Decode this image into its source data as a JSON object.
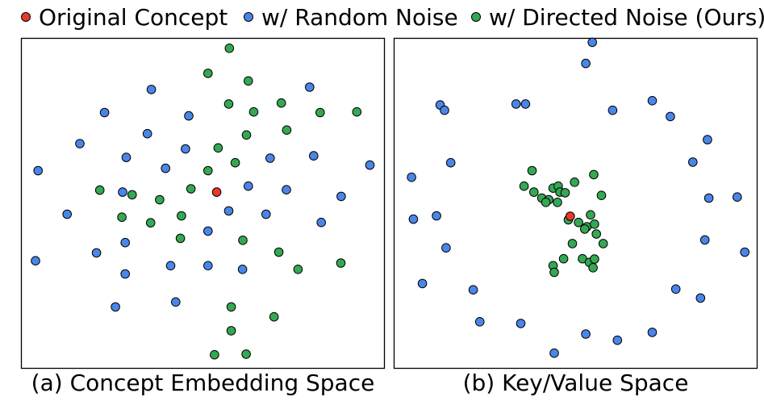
{
  "colors": {
    "original": "#e8392c",
    "random": "#4a86e8",
    "directed": "#34a853"
  },
  "legend": {
    "original": "Original Concept",
    "random": "w/ Random Noise",
    "directed": "w/ Directed Noise (Ours)"
  },
  "captions": {
    "a": "(a) Concept Embedding Space",
    "b": "(b) Key/Value Space"
  },
  "chart_data": [
    {
      "type": "scatter",
      "title": "(a) Concept Embedding Space",
      "xlim": [
        0,
        100
      ],
      "ylim": [
        0,
        100
      ],
      "grid": false,
      "series": [
        {
          "name": "Original Concept",
          "points": [
            [
              53.8,
              53.4
            ]
          ]
        },
        {
          "name": "w/ Random Noise",
          "points": [
            [
              4.6,
              59.9
            ],
            [
              22.9,
              77.5
            ],
            [
              16.1,
              68.1
            ],
            [
              35.8,
              84.5
            ],
            [
              46.1,
              76.5
            ],
            [
              34.7,
              71.1
            ],
            [
              45.2,
              66.5
            ],
            [
              28.9,
              63.9
            ],
            [
              39.7,
              60.6
            ],
            [
              12.6,
              46.7
            ],
            [
              28.6,
              38.1
            ],
            [
              20.7,
              35.0
            ],
            [
              3.9,
              32.6
            ],
            [
              28.6,
              28.6
            ],
            [
              41.1,
              31.1
            ],
            [
              51.4,
              31.1
            ],
            [
              51.4,
              41.6
            ],
            [
              57.1,
              47.7
            ],
            [
              62.5,
              55.2
            ],
            [
              68.5,
              63.7
            ],
            [
              73.0,
              54.1
            ],
            [
              80.5,
              64.4
            ],
            [
              96.0,
              61.6
            ],
            [
              88.1,
              52.1
            ],
            [
              67.4,
              46.7
            ],
            [
              82.6,
              44.2
            ],
            [
              60.9,
              30.0
            ],
            [
              79.4,
              85.2
            ],
            [
              42.5,
              20.1
            ],
            [
              25.9,
              18.6
            ],
            [
              27.9,
              53.4
            ]
          ]
        },
        {
          "name": "w/ Directed Noise (Ours)",
          "points": [
            [
              57.3,
              97.0
            ],
            [
              51.4,
              89.4
            ],
            [
              62.5,
              87.1
            ],
            [
              57.1,
              80.1
            ],
            [
              64.0,
              77.7
            ],
            [
              71.6,
              80.4
            ],
            [
              82.3,
              77.5
            ],
            [
              92.4,
              77.7
            ],
            [
              73.1,
              72.2
            ],
            [
              62.0,
              70.7
            ],
            [
              54.2,
              66.8
            ],
            [
              58.9,
              62.3
            ],
            [
              51.4,
              59.9
            ],
            [
              46.7,
              54.4
            ],
            [
              38.1,
              51.1
            ],
            [
              30.5,
              52.6
            ],
            [
              21.6,
              54.0
            ],
            [
              27.7,
              45.8
            ],
            [
              35.6,
              44.1
            ],
            [
              44.1,
              46.2
            ],
            [
              43.8,
              39.4
            ],
            [
              61.0,
              38.8
            ],
            [
              70.9,
              35.2
            ],
            [
              76.2,
              30.0
            ],
            [
              88.0,
              31.9
            ],
            [
              57.8,
              18.6
            ],
            [
              69.6,
              15.6
            ],
            [
              57.8,
              11.4
            ],
            [
              53.2,
              4.1
            ],
            [
              61.9,
              4.3
            ]
          ]
        }
      ]
    },
    {
      "type": "scatter",
      "title": "(b) Key/Value Space",
      "xlim": [
        0,
        100
      ],
      "ylim": [
        0,
        100
      ],
      "grid": false,
      "series": [
        {
          "name": "Original Concept",
          "points": [
            [
              48.5,
              46.1
            ]
          ]
        },
        {
          "name": "w/ Random Noise",
          "points": [
            [
              54.6,
              98.8
            ],
            [
              52.8,
              92.4
            ],
            [
              12.7,
              79.8
            ],
            [
              13.9,
              78.2
            ],
            [
              33.6,
              80.1
            ],
            [
              36.2,
              80.1
            ],
            [
              60.2,
              78.2
            ],
            [
              71.1,
              81.1
            ],
            [
              76.1,
              76.3
            ],
            [
              86.3,
              69.3
            ],
            [
              82.3,
              62.5
            ],
            [
              15.6,
              62.3
            ],
            [
              4.8,
              57.9
            ],
            [
              5.3,
              45.2
            ],
            [
              11.7,
              46.2
            ],
            [
              14.3,
              36.5
            ],
            [
              7.8,
              25.7
            ],
            [
              21.8,
              23.8
            ],
            [
              23.6,
              14.1
            ],
            [
              34.9,
              13.6
            ],
            [
              44.1,
              4.6
            ],
            [
              52.8,
              10.4
            ],
            [
              61.5,
              8.5
            ],
            [
              71.1,
              10.9
            ],
            [
              77.6,
              24.0
            ],
            [
              85.6,
              38.9
            ],
            [
              86.7,
              51.6
            ],
            [
              94.5,
              51.9
            ],
            [
              96.6,
              35.2
            ],
            [
              84.4,
              21.3
            ]
          ]
        },
        {
          "name": "w/ Directed Noise (Ours)",
          "points": [
            [
              38.0,
              59.9
            ],
            [
              35.8,
              55.2
            ],
            [
              38.5,
              53.4
            ],
            [
              40.7,
              51.6
            ],
            [
              42.6,
              51.1
            ],
            [
              43.8,
              54.6
            ],
            [
              45.2,
              55.2
            ],
            [
              45.7,
              53.4
            ],
            [
              47.1,
              53.2
            ],
            [
              49.7,
              56.4
            ],
            [
              55.0,
              58.7
            ],
            [
              57.1,
              52.4
            ],
            [
              41.8,
              50.3
            ],
            [
              45.0,
              50.3
            ],
            [
              48.0,
              45.0
            ],
            [
              50.8,
              44.2
            ],
            [
              53.1,
              42.9
            ],
            [
              54.1,
              46.5
            ],
            [
              55.2,
              43.7
            ],
            [
              55.7,
              40.7
            ],
            [
              52.5,
              42.2
            ],
            [
              49.1,
              37.8
            ],
            [
              57.6,
              37.8
            ],
            [
              46.7,
              33.2
            ],
            [
              43.8,
              31.1
            ],
            [
              44.1,
              29.1
            ],
            [
              51.9,
              33.2
            ],
            [
              53.8,
              32.1
            ],
            [
              55.2,
              33.1
            ],
            [
              54.8,
              30.5
            ]
          ]
        }
      ]
    }
  ]
}
